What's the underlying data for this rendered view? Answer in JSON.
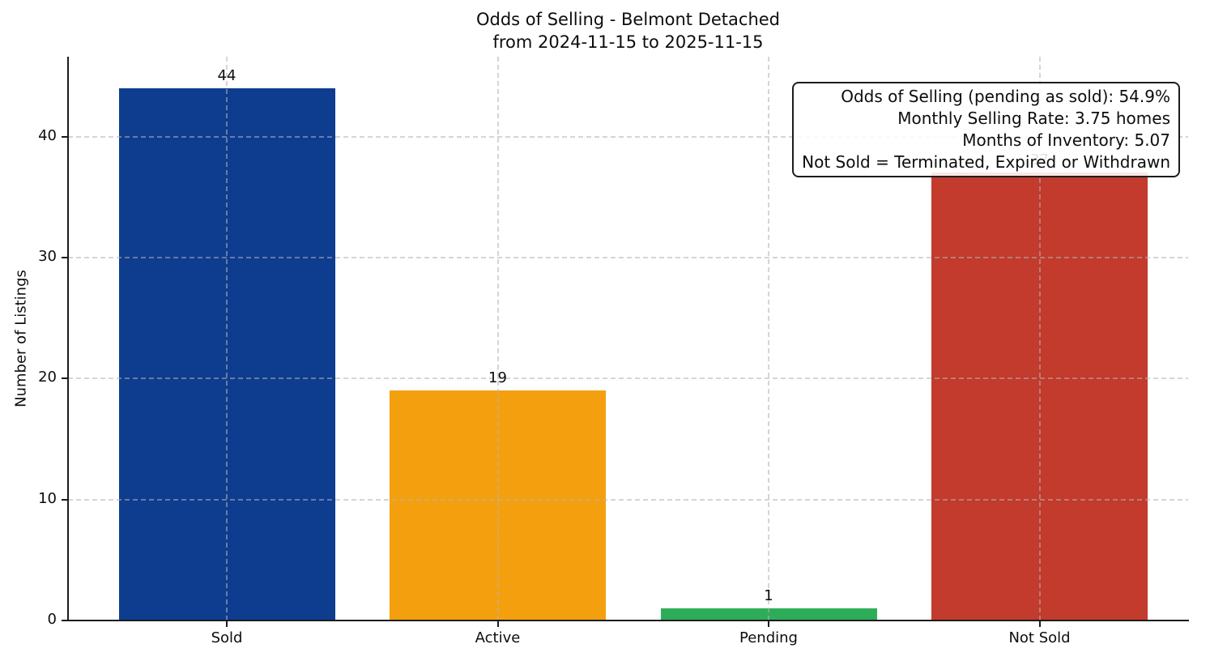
{
  "title": {
    "line1": "Odds of Selling - Belmont Detached",
    "line2": "from 2024-11-15 to 2025-11-15"
  },
  "ylabel": "Number of Listings",
  "chart_data": {
    "type": "bar",
    "title": "Odds of Selling - Belmont Detached\nfrom 2024-11-15 to 2025-11-15",
    "categories": [
      "Sold",
      "Active",
      "Pending",
      "Not Sold"
    ],
    "values": [
      44,
      19,
      1,
      37
    ],
    "bar_labels": [
      "44",
      "19",
      "1",
      "37"
    ],
    "bar_colors": [
      "#0e3d90",
      "#f4a00e",
      "#2ead58",
      "#c23b2c"
    ],
    "xlabel": "",
    "ylabel": "Number of Listings",
    "yticks": [
      0,
      10,
      20,
      30,
      40
    ],
    "ylim": [
      0,
      46.6
    ],
    "grid": {
      "visible": true,
      "style": "dashed",
      "axes": "both"
    },
    "legend": "none",
    "annotation": {
      "position": "top-right",
      "lines": [
        "Odds of Selling (pending as sold): 54.9%",
        "Monthly Selling Rate: 3.75 homes",
        "Months of Inventory: 5.07",
        "Not Sold = Terminated, Expired or Withdrawn"
      ]
    }
  }
}
